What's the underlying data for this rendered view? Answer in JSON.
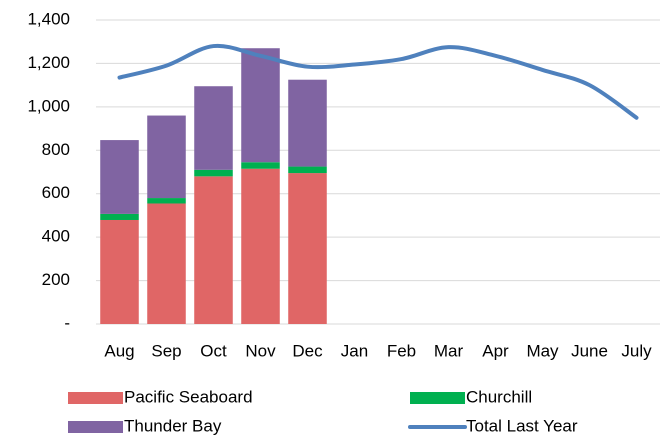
{
  "chart_data": {
    "type": "bar+line",
    "categories": [
      "Aug",
      "Sep",
      "Oct",
      "Nov",
      "Dec",
      "Jan",
      "Feb",
      "Mar",
      "Apr",
      "May",
      "June",
      "July"
    ],
    "series": [
      {
        "name": "Pacific Seaboard",
        "color": "#e06666",
        "type": "bar",
        "values": [
          479,
          555,
          680,
          715,
          695,
          null,
          null,
          null,
          null,
          null,
          null,
          null
        ]
      },
      {
        "name": "Churchill",
        "color": "#00b050",
        "type": "bar",
        "values": [
          28,
          25,
          30,
          30,
          30,
          null,
          null,
          null,
          null,
          null,
          null,
          null
        ]
      },
      {
        "name": "Thunder Bay",
        "color": "#8064a2",
        "type": "bar",
        "values": [
          340,
          380,
          385,
          525,
          400,
          null,
          null,
          null,
          null,
          null,
          null,
          null
        ]
      },
      {
        "name": "Total Last Year",
        "color": "#4f81bd",
        "type": "line",
        "values": [
          1135,
          1190,
          1280,
          1235,
          1185,
          1195,
          1220,
          1275,
          1235,
          1170,
          1100,
          950
        ]
      }
    ],
    "stacked": true,
    "ylim": [
      0,
      1400
    ],
    "yticks": [
      {
        "value": 0,
        "label": "-"
      },
      200,
      400,
      600,
      800,
      {
        "value": 1000,
        "label": "1,000"
      },
      {
        "value": 1200,
        "label": "1,200"
      },
      {
        "value": 1400,
        "label": "1,400"
      }
    ],
    "grid": true,
    "legend": "bottom"
  }
}
